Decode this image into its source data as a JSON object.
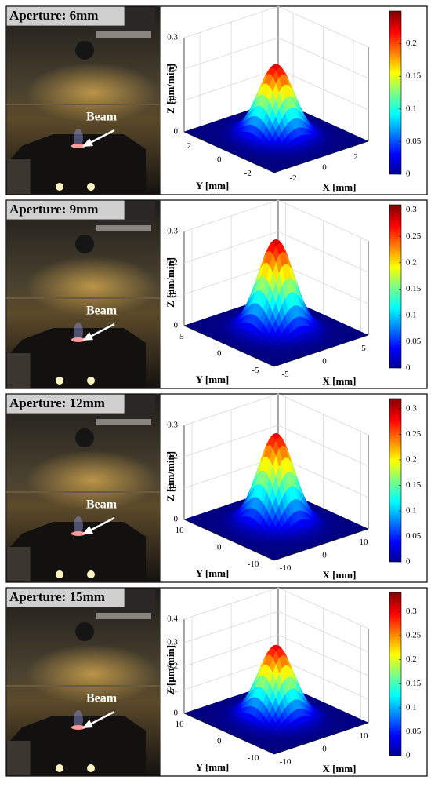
{
  "chart_data": [
    {
      "type": "surface",
      "title": "Aperture: 6mm",
      "annotation": "Beam",
      "xlabel": "X [mm]",
      "ylabel": "Y [mm]",
      "zlabel": "Z [μm/min]",
      "xlim": [
        -3,
        3
      ],
      "xticks": [
        -2,
        0,
        2
      ],
      "ylim": [
        -3,
        3
      ],
      "yticks": [
        -2,
        0,
        2
      ],
      "zlim": [
        0,
        0.3
      ],
      "zticks": [
        0,
        0.1,
        0.2,
        0.3
      ],
      "peak": 0.23,
      "colormap": "jet",
      "clim": [
        0,
        0.25
      ],
      "cticks": [
        0,
        0.05,
        0.1,
        0.15,
        0.2
      ]
    },
    {
      "type": "surface",
      "title": "Aperture: 9mm",
      "annotation": "Beam",
      "xlabel": "X [mm]",
      "ylabel": "Y [mm]",
      "zlabel": "Z [μm/min]",
      "xlim": [
        -6,
        6
      ],
      "xticks": [
        -5,
        0,
        5
      ],
      "ylim": [
        -6,
        6
      ],
      "yticks": [
        -5,
        0,
        5
      ],
      "zlim": [
        0,
        0.3
      ],
      "zticks": [
        0,
        0.1,
        0.2,
        0.3
      ],
      "peak": 0.29,
      "colormap": "jet",
      "clim": [
        0,
        0.31
      ],
      "cticks": [
        0,
        0.05,
        0.1,
        0.15,
        0.2,
        0.25,
        0.3
      ]
    },
    {
      "type": "surface",
      "title": "Aperture: 12mm",
      "annotation": "Beam",
      "xlabel": "X [mm]",
      "ylabel": "Y [mm]",
      "zlabel": "Z [μm/min]",
      "xlim": [
        -12,
        12
      ],
      "xticks": [
        -10,
        0,
        10
      ],
      "ylim": [
        -12,
        12
      ],
      "yticks": [
        -10,
        0,
        10
      ],
      "zlim": [
        0,
        0.3
      ],
      "zticks": [
        0,
        0.1,
        0.2,
        0.3
      ],
      "peak": 0.29,
      "colormap": "jet",
      "clim": [
        0,
        0.32
      ],
      "cticks": [
        0,
        0.05,
        0.1,
        0.15,
        0.2,
        0.25,
        0.3
      ]
    },
    {
      "type": "surface",
      "title": "Aperture: 15mm",
      "annotation": "Beam",
      "xlabel": "X [mm]",
      "ylabel": "Y [mm]",
      "zlabel": "Z [μm/min]",
      "xlim": [
        -12,
        12
      ],
      "xticks": [
        -10,
        0,
        10
      ],
      "ylim": [
        -12,
        12
      ],
      "yticks": [
        -10,
        0,
        10
      ],
      "zlim": [
        0,
        0.4
      ],
      "zticks": [
        0,
        0.1,
        0.2,
        0.3,
        0.4
      ],
      "peak": 0.31,
      "colormap": "jet",
      "clim": [
        0,
        0.34
      ],
      "cticks": [
        0,
        0.05,
        0.1,
        0.15,
        0.2,
        0.25,
        0.3
      ]
    }
  ]
}
